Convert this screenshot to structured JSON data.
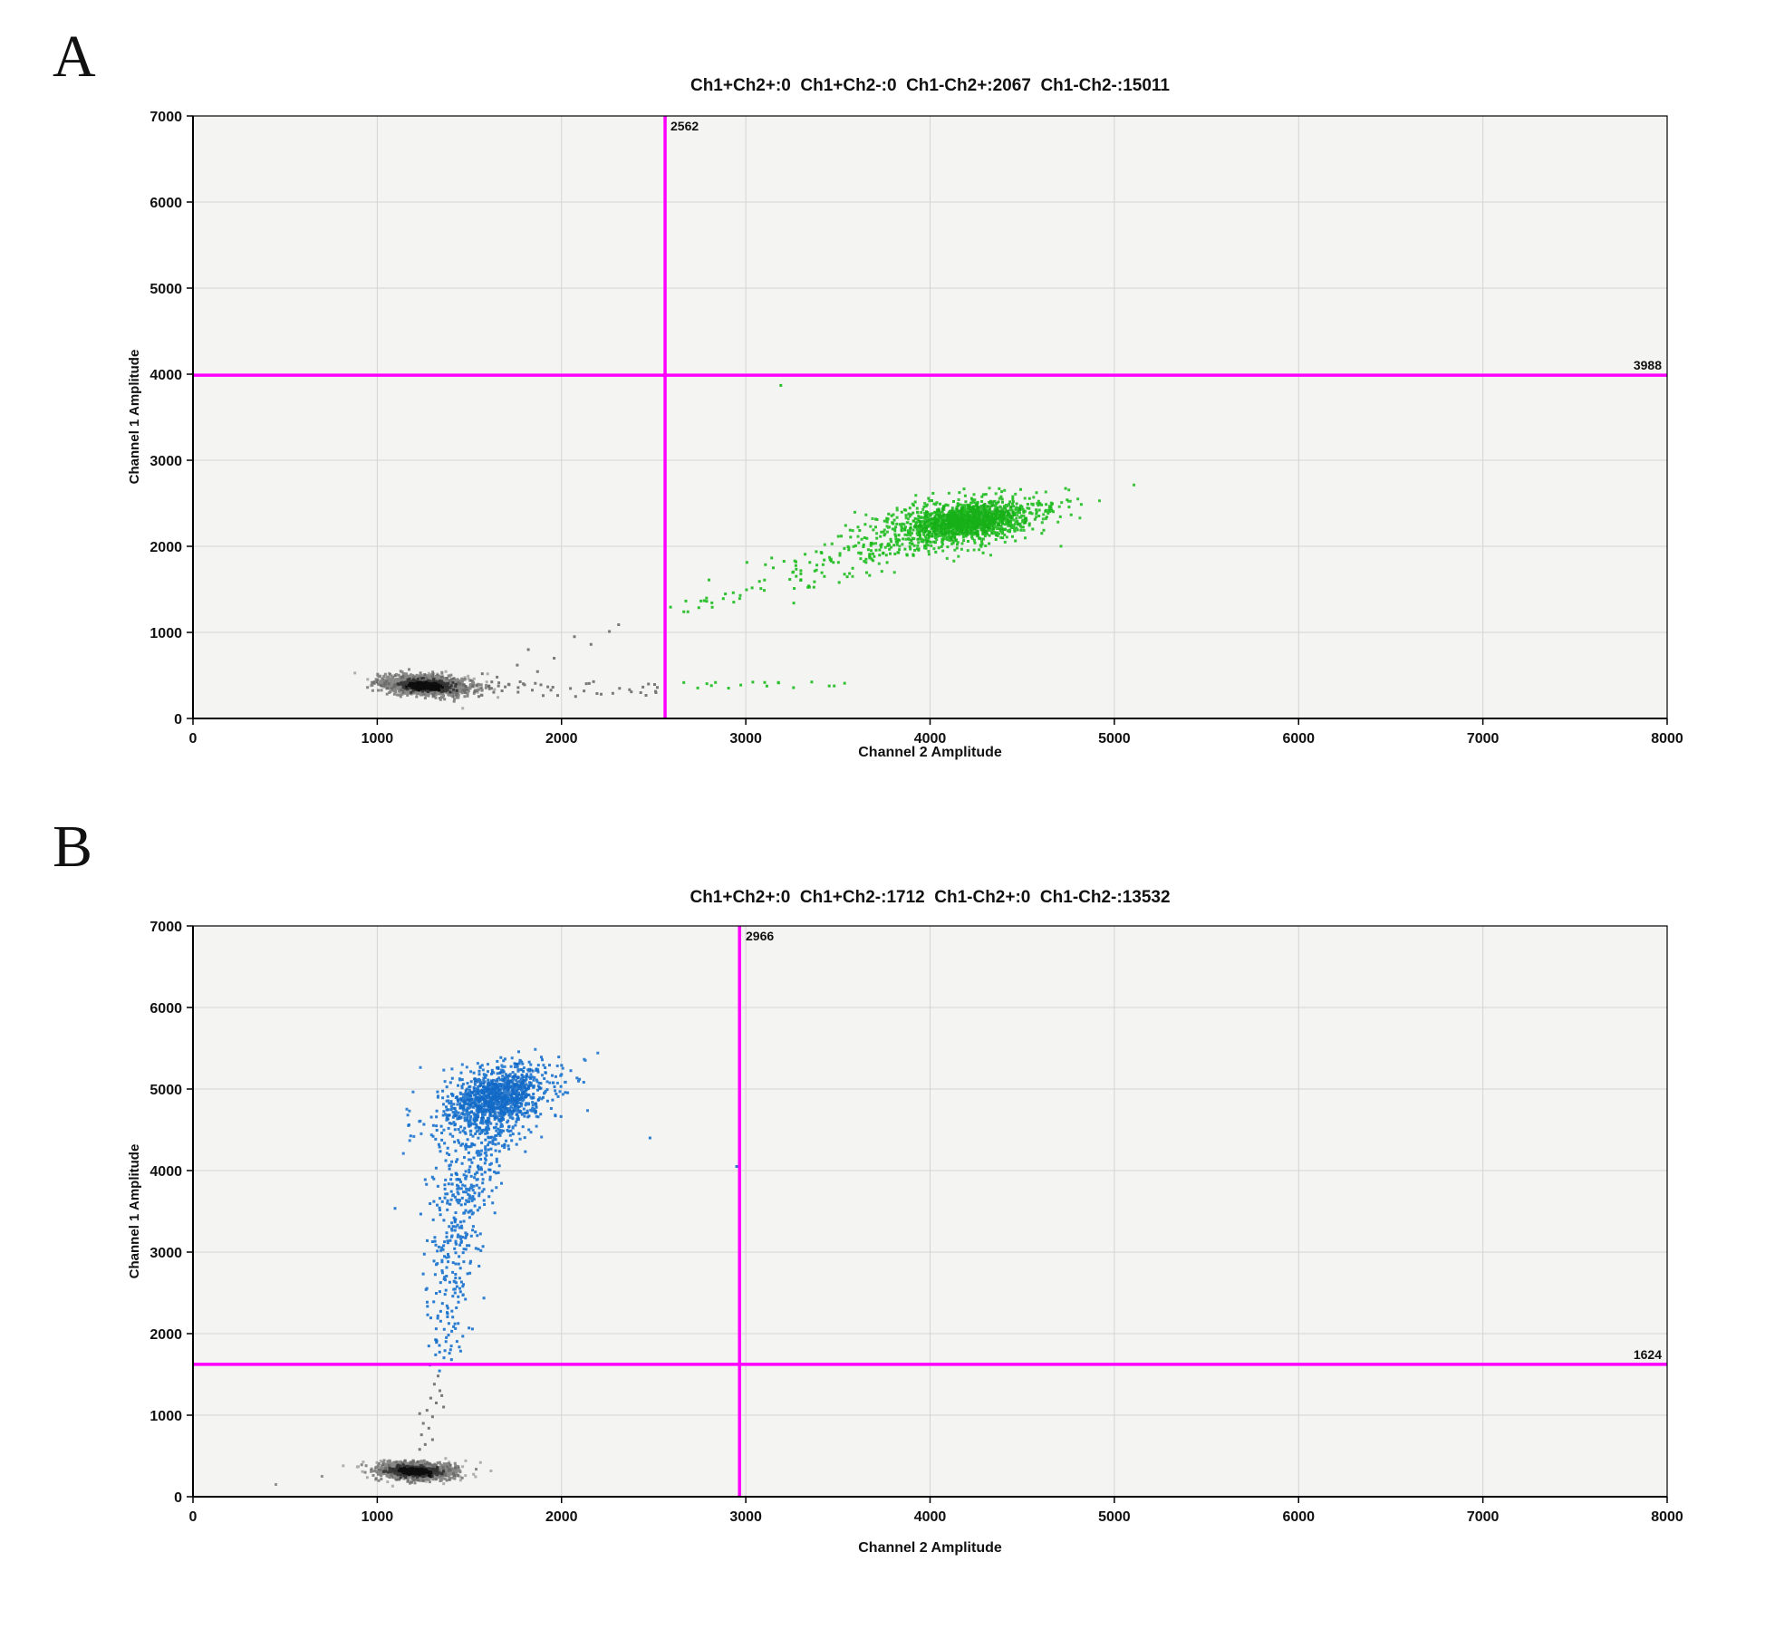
{
  "figure": {
    "background": "#ffffff"
  },
  "panels": [
    {
      "letter": "A",
      "title": "Ch1+Ch2+:0  Ch1+Ch2-:0  Ch1-Ch2+:2067  Ch1-Ch2-:15011",
      "xlabel": "Channel 2 Amplitude",
      "ylabel": "Channel 1 Amplitude",
      "threshold_x_label": "2562",
      "threshold_y_label": "3988"
    },
    {
      "letter": "B",
      "title": "Ch1+Ch2+:0  Ch1+Ch2-:1712  Ch1-Ch2+:0  Ch1-Ch2-:13532",
      "xlabel": "Channel 2 Amplitude",
      "ylabel": "Channel 1 Amplitude",
      "threshold_x_label": "2966",
      "threshold_y_label": "1624"
    }
  ],
  "chart_data": [
    {
      "type": "scatter",
      "title": "Ch1+Ch2+:0  Ch1+Ch2-:0  Ch1-Ch2+:2067  Ch1-Ch2-:15011",
      "xlabel": "Channel 2 Amplitude",
      "ylabel": "Channel 1 Amplitude",
      "xlim": [
        0,
        8000
      ],
      "ylim": [
        0,
        7000
      ],
      "xticks": [
        0,
        1000,
        2000,
        3000,
        4000,
        5000,
        6000,
        7000,
        8000
      ],
      "yticks": [
        0,
        1000,
        2000,
        3000,
        4000,
        5000,
        6000,
        7000
      ],
      "grid": true,
      "plot_bg": "#f4f4f3",
      "grid_color": "#d4d4d4",
      "seed": 17,
      "thresholds": {
        "x": 2562,
        "y": 3988,
        "color": "#ff00ff"
      },
      "quadrant_counts": {
        "Ch1+Ch2+": 0,
        "Ch1+Ch2-": 0,
        "Ch1-Ch2+": 2067,
        "Ch1-Ch2-": 15011
      },
      "clusters": [
        {
          "name": "negative-halo",
          "dist": "gauss",
          "n": 150,
          "cx": 1280,
          "cy": 390,
          "sx": 165,
          "sy": 82,
          "corr": -0.2,
          "color": "#6a6a6a",
          "opacity": 0.5
        },
        {
          "name": "negative-dense",
          "dist": "gauss",
          "n": 2000,
          "cx": 1270,
          "cy": 385,
          "sx": 103,
          "sy": 50,
          "corr": -0.2,
          "color": "#3f3f3f",
          "opacity": 0.6
        },
        {
          "name": "negative-core",
          "dist": "gauss",
          "n": 800,
          "cx": 1265,
          "cy": 380,
          "sx": 58,
          "sy": 27,
          "corr": -0.25,
          "color": "#1a1a1a",
          "opacity": 0.7
        },
        {
          "name": "negative-inner-core",
          "dist": "gauss",
          "n": 400,
          "cx": 1260,
          "cy": 378,
          "sx": 36,
          "sy": 17,
          "corr": -0.25,
          "color": "#000000",
          "opacity": 0.75
        },
        {
          "name": "negative-band",
          "dist": "uniform",
          "n": 46,
          "x0": 1430,
          "x1": 2555,
          "y0": 255,
          "y1": 430,
          "color": "#5a5a5a",
          "opacity": 0.8
        },
        {
          "name": "negative-risers",
          "dist": "points",
          "color": "#5a5a5a",
          "opacity": 0.8,
          "pts": [
            [
              1650,
              480
            ],
            [
              1760,
              620
            ],
            [
              1820,
              800
            ],
            [
              1960,
              700
            ],
            [
              2070,
              950
            ],
            [
              2160,
              860
            ],
            [
              2260,
              1010
            ],
            [
              2310,
              1090
            ],
            [
              1570,
              520
            ],
            [
              1870,
              545
            ],
            [
              2430,
              300
            ],
            [
              2520,
              360
            ]
          ]
        },
        {
          "name": "positive-halo",
          "dist": "gauss",
          "n": 200,
          "cx": 4150,
          "cy": 2250,
          "sx": 320,
          "sy": 195,
          "corr": 0.5,
          "color": "#1bbb1b",
          "opacity": 0.85
        },
        {
          "name": "positive-dense",
          "dist": "gauss",
          "n": 1000,
          "cx": 4180,
          "cy": 2280,
          "sx": 205,
          "sy": 132,
          "corr": 0.45,
          "color": "#1bbb1b",
          "opacity": 0.9
        },
        {
          "name": "positive-core",
          "dist": "gauss",
          "n": 700,
          "cx": 4200,
          "cy": 2300,
          "sx": 120,
          "sy": 85,
          "corr": 0.4,
          "color": "#14ad14",
          "opacity": 0.85
        },
        {
          "name": "positive-wedge",
          "dist": "gauss",
          "n": 60,
          "cx": 3700,
          "cy": 1950,
          "sx": 150,
          "sy": 110,
          "corr": 0.3,
          "color": "#1bbb1b",
          "opacity": 0.9
        },
        {
          "name": "positive-trail-1",
          "dist": "gauss",
          "n": 40,
          "cx": 3400,
          "cy": 1750,
          "sx": 150,
          "sy": 100,
          "corr": 0.3,
          "color": "#1bbb1b",
          "opacity": 0.9
        },
        {
          "name": "positive-trail-2",
          "dist": "gauss",
          "n": 20,
          "cx": 3050,
          "cy": 1500,
          "sx": 140,
          "sy": 90,
          "corr": 0.3,
          "color": "#1bbb1b",
          "opacity": 0.9
        },
        {
          "name": "positive-trail-3",
          "dist": "gauss",
          "n": 10,
          "cx": 2760,
          "cy": 1320,
          "sx": 110,
          "sy": 60,
          "corr": 0.2,
          "color": "#1bbb1b",
          "opacity": 0.9
        },
        {
          "name": "positive-band",
          "dist": "uniform",
          "n": 17,
          "x0": 2590,
          "x1": 3620,
          "y0": 350,
          "y1": 430,
          "color": "#1bbb1b",
          "opacity": 0.9
        },
        {
          "name": "positive-outlier",
          "dist": "points",
          "color": "#1bbb1b",
          "opacity": 0.95,
          "pts": [
            [
              3190,
              3870
            ]
          ]
        }
      ]
    },
    {
      "type": "scatter",
      "title": "Ch1+Ch2+:0  Ch1+Ch2-:1712  Ch1-Ch2+:0  Ch1-Ch2-:13532",
      "xlabel": "Channel 2 Amplitude",
      "ylabel": "Channel 1 Amplitude",
      "xlim": [
        0,
        8000
      ],
      "ylim": [
        0,
        7000
      ],
      "xticks": [
        0,
        1000,
        2000,
        3000,
        4000,
        5000,
        6000,
        7000,
        8000
      ],
      "yticks": [
        0,
        1000,
        2000,
        3000,
        4000,
        5000,
        6000,
        7000
      ],
      "grid": true,
      "plot_bg": "#f4f4f3",
      "grid_color": "#d4d4d4",
      "seed": 53,
      "thresholds": {
        "x": 2966,
        "y": 1624,
        "color": "#ff00ff"
      },
      "quadrant_counts": {
        "Ch1+Ch2+": 0,
        "Ch1+Ch2-": 1712,
        "Ch1-Ch2+": 0,
        "Ch1-Ch2-": 13532
      },
      "clusters": [
        {
          "name": "negative-halo",
          "dist": "gauss",
          "n": 130,
          "cx": 1220,
          "cy": 320,
          "sx": 150,
          "sy": 70,
          "corr": -0.15,
          "color": "#6a6a6a",
          "opacity": 0.5
        },
        {
          "name": "negative-dense",
          "dist": "gauss",
          "n": 1700,
          "cx": 1210,
          "cy": 315,
          "sx": 92,
          "sy": 46,
          "corr": -0.15,
          "color": "#3f3f3f",
          "opacity": 0.6
        },
        {
          "name": "negative-core",
          "dist": "gauss",
          "n": 750,
          "cx": 1205,
          "cy": 312,
          "sx": 55,
          "sy": 26,
          "corr": -0.2,
          "color": "#1a1a1a",
          "opacity": 0.7
        },
        {
          "name": "negative-inner-core",
          "dist": "gauss",
          "n": 380,
          "cx": 1200,
          "cy": 310,
          "sx": 34,
          "sy": 16,
          "corr": -0.2,
          "color": "#000000",
          "opacity": 0.75
        },
        {
          "name": "negative-trail",
          "dist": "points",
          "color": "#5a5a5a",
          "opacity": 0.8,
          "pts": [
            [
              1330,
              1480
            ],
            [
              1310,
              1380
            ],
            [
              1340,
              1300
            ],
            [
              1290,
              1210
            ],
            [
              1320,
              1150
            ],
            [
              1270,
              1060
            ],
            [
              1300,
              980
            ],
            [
              1250,
              900
            ],
            [
              1280,
              840
            ],
            [
              1240,
              760
            ],
            [
              1300,
              700
            ],
            [
              1260,
              640
            ],
            [
              1230,
              580
            ],
            [
              1350,
              1240
            ],
            [
              1360,
              1100
            ],
            [
              1230,
              1020
            ]
          ]
        },
        {
          "name": "negative-outliers",
          "dist": "points",
          "color": "#6a6a6a",
          "opacity": 0.7,
          "pts": [
            [
              450,
              150
            ],
            [
              700,
              250
            ]
          ]
        },
        {
          "name": "positive-halo",
          "dist": "gauss",
          "n": 130,
          "cx": 1640,
          "cy": 4900,
          "sx": 225,
          "sy": 295,
          "corr": 0.4,
          "color": "#1470cc",
          "opacity": 0.85
        },
        {
          "name": "positive-dense",
          "dist": "gauss",
          "n": 650,
          "cx": 1640,
          "cy": 4880,
          "sx": 150,
          "sy": 225,
          "corr": 0.4,
          "color": "#1470cc",
          "opacity": 0.9
        },
        {
          "name": "positive-core",
          "dist": "gauss",
          "n": 500,
          "cx": 1660,
          "cy": 4920,
          "sx": 95,
          "sy": 150,
          "corr": 0.35,
          "color": "#0f66c4",
          "opacity": 0.85
        },
        {
          "name": "positive-tail-1",
          "dist": "gauss",
          "n": 150,
          "cx": 1560,
          "cy": 4350,
          "sx": 110,
          "sy": 200,
          "corr": 0.2,
          "color": "#1470cc",
          "opacity": 0.9
        },
        {
          "name": "positive-tail-2",
          "dist": "gauss",
          "n": 130,
          "cx": 1470,
          "cy": 3750,
          "sx": 90,
          "sy": 200,
          "corr": 0.1,
          "color": "#1470cc",
          "opacity": 0.9
        },
        {
          "name": "positive-tail-3",
          "dist": "gauss",
          "n": 90,
          "cx": 1430,
          "cy": 3150,
          "sx": 80,
          "sy": 190,
          "corr": 0.1,
          "color": "#1470cc",
          "opacity": 0.9
        },
        {
          "name": "positive-tail-4",
          "dist": "gauss",
          "n": 55,
          "cx": 1400,
          "cy": 2600,
          "sx": 70,
          "sy": 170,
          "corr": 0.0,
          "color": "#1470cc",
          "opacity": 0.9
        },
        {
          "name": "positive-tail-5",
          "dist": "gauss",
          "n": 30,
          "cx": 1380,
          "cy": 2120,
          "sx": 60,
          "sy": 150,
          "corr": 0.0,
          "color": "#1470cc",
          "opacity": 0.9
        },
        {
          "name": "positive-tail-6",
          "dist": "gauss",
          "n": 14,
          "cx": 1360,
          "cy": 1800,
          "sx": 50,
          "sy": 90,
          "corr": 0.0,
          "color": "#1470cc",
          "opacity": 0.9
        },
        {
          "name": "positive-outliers",
          "dist": "points",
          "color": "#1470cc",
          "opacity": 0.9,
          "pts": [
            [
              2480,
              4400
            ],
            [
              2950,
              4050
            ],
            [
              2000,
              5290
            ]
          ]
        }
      ]
    }
  ]
}
